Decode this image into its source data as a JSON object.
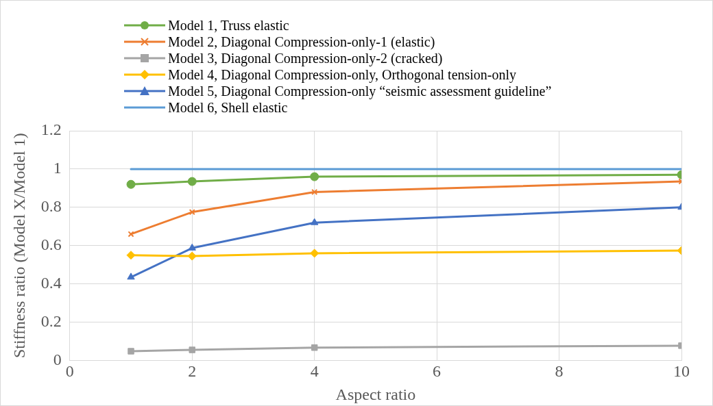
{
  "chart_data": {
    "type": "line",
    "xlabel": "Aspect ratio",
    "ylabel": "Stiffness ratio (Model X/Model 1)",
    "x": [
      1,
      2,
      4,
      10
    ],
    "series": [
      {
        "name": "Model 1, Truss elastic",
        "color": "#70ad47",
        "marker": "circle",
        "values": [
          0.92,
          0.935,
          0.96,
          0.97
        ]
      },
      {
        "name": "Model 2, Diagonal Compression-only-1 (elastic)",
        "color": "#ed7d31",
        "marker": "cross",
        "values": [
          0.66,
          0.775,
          0.88,
          0.935
        ]
      },
      {
        "name": "Model 3, Diagonal Compression-only-2 (cracked)",
        "color": "#a5a5a5",
        "marker": "square",
        "values": [
          0.048,
          0.055,
          0.067,
          0.077
        ]
      },
      {
        "name": "Model 4, Diagonal Compression-only, Orthogonal tension-only",
        "color": "#ffc000",
        "marker": "diamond",
        "values": [
          0.55,
          0.545,
          0.56,
          0.574
        ]
      },
      {
        "name": "Model 5, Diagonal Compression-only “seismic assessment guideline”",
        "color": "#4472c4",
        "marker": "triangle",
        "values": [
          0.435,
          0.587,
          0.72,
          0.8
        ]
      },
      {
        "name": "Model 6, Shell elastic",
        "color": "#5b9bd5",
        "marker": "none",
        "values": [
          1,
          1,
          1,
          1
        ]
      }
    ],
    "xlim": [
      0,
      10
    ],
    "xticks": [
      0,
      2,
      4,
      6,
      8,
      10
    ],
    "ylim": [
      0,
      1.2
    ],
    "yticks": [
      0,
      0.2,
      0.4,
      0.6,
      0.8,
      1,
      1.2
    ],
    "grid": true,
    "legend": "top"
  }
}
